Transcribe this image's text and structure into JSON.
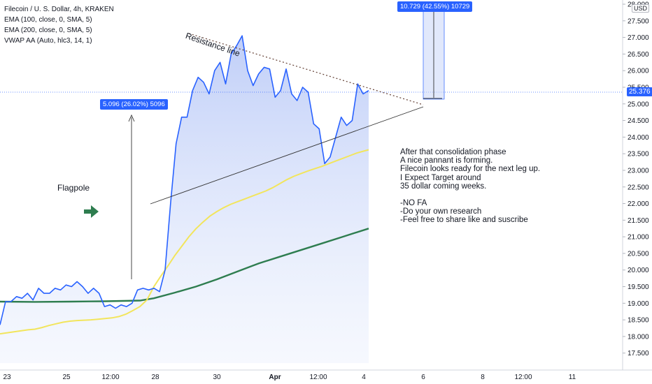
{
  "legend": {
    "title": "Filecoin / U. S. Dollar, 4h, KRAKEN",
    "ema100": "EMA (100, close, 0, SMA, 5)",
    "ema200": "EMA (200, close, 0, SMA, 5)",
    "vwap": "VWAP AA (Auto, hlc3, 14, 1)"
  },
  "currency": "USD",
  "current_price": "25.376",
  "annotations": {
    "flagpole": "Flagpole",
    "resistance": "Resistance line",
    "measure_flagpole": "5.096 (26.02%) 5096",
    "measure_target": "10.729 (42.55%) 10729"
  },
  "note_lines": [
    "After that consolidation phase",
    "A nice pannant is forming.",
    "Filecoin looks ready for the next leg up.",
    "I Expect Target around",
    "35 dollar coming weeks.",
    "",
    "-NO FA",
    "-Do your own research",
    "-Feel free to share like and suscribe"
  ],
  "colors": {
    "price": "#2962ff",
    "ema100": "#f2e55c",
    "ema200": "#2e7d4f",
    "area_fill": "#c9d6f8",
    "accent": "#2962ff",
    "green_arrow": "#2e7d4f"
  },
  "chart_data": {
    "type": "line",
    "title": "Filecoin / U. S. Dollar, 4h, KRAKEN",
    "ylim": [
      17.2,
      28.0
    ],
    "y_ticks": [
      "17.500",
      "18.000",
      "18.500",
      "19.000",
      "19.500",
      "20.000",
      "20.500",
      "21.000",
      "21.500",
      "22.000",
      "22.500",
      "23.000",
      "23.500",
      "24.000",
      "24.500",
      "25.000",
      "25.500",
      "26.000",
      "26.500",
      "27.000",
      "27.500",
      "28.000"
    ],
    "x_ticks": [
      "23",
      "25",
      "12:00",
      "28",
      "30",
      "Apr",
      "12:00",
      "4",
      "6",
      "8",
      "12:00",
      "11"
    ],
    "series": [
      {
        "key": "price",
        "x": [
          0,
          1.2,
          2.4,
          3.6,
          4.8,
          6,
          7.2,
          8.4,
          9.6,
          10.8,
          12,
          13.2,
          14.4,
          15.6,
          16.8,
          18,
          19.2,
          20.4,
          21.6,
          22.8,
          24,
          25.2,
          26.4,
          27.6,
          28.8,
          30,
          31.2,
          32.4,
          33.6,
          34.8,
          36,
          37.2,
          38.4,
          39.6,
          40.8,
          42,
          43.2,
          44.4,
          45.6,
          46.8,
          48,
          49.2,
          50.4,
          51.6,
          52.8,
          54,
          55.2,
          56.4,
          57.6,
          58.8,
          60,
          61.2,
          62.4,
          63.6,
          64.8,
          66,
          67.2,
          68.4,
          69.6,
          70.8,
          72,
          73.2,
          74.4,
          75.6,
          76.8,
          78,
          79.2,
          80.4
        ],
        "values": [
          18.35,
          19.05,
          19.05,
          19.2,
          19.15,
          19.3,
          19.1,
          19.45,
          19.3,
          19.3,
          19.45,
          19.4,
          19.55,
          19.5,
          19.65,
          19.5,
          19.3,
          19.45,
          19.3,
          18.9,
          18.95,
          18.85,
          18.95,
          18.9,
          19.0,
          19.4,
          19.45,
          19.4,
          19.45,
          19.35,
          20.0,
          22.0,
          23.8,
          24.6,
          24.6,
          25.4,
          25.8,
          25.65,
          25.3,
          26.0,
          26.25,
          25.6,
          26.5,
          26.75,
          27.05,
          26.0,
          25.55,
          25.9,
          26.1,
          26.05,
          25.2,
          25.4,
          26.05,
          25.3,
          25.1,
          25.5,
          25.35,
          24.4,
          24.25,
          23.2,
          23.4,
          24.0,
          24.6,
          24.35,
          24.5,
          25.6,
          25.3,
          25.4
        ]
      },
      {
        "key": "ema100",
        "x": [
          0,
          20,
          40,
          50,
          60,
          70,
          80,
          90,
          100,
          110,
          120,
          130,
          140,
          150,
          160,
          170,
          180,
          190,
          200,
          210,
          220,
          230,
          240,
          250,
          260,
          270,
          280,
          290,
          300,
          310,
          320,
          330,
          340,
          350,
          360,
          370,
          380,
          390,
          400,
          410,
          420,
          430,
          440,
          450,
          460,
          470,
          480,
          490,
          500,
          510,
          520,
          527
        ],
        "values": [
          18.08,
          18.14,
          18.2,
          18.22,
          18.27,
          18.33,
          18.38,
          18.43,
          18.46,
          18.48,
          18.49,
          18.5,
          18.52,
          18.54,
          18.56,
          18.6,
          18.67,
          18.78,
          18.9,
          19.1,
          19.5,
          19.82,
          20.12,
          20.44,
          20.72,
          21.0,
          21.24,
          21.44,
          21.62,
          21.76,
          21.88,
          21.98,
          22.06,
          22.14,
          22.22,
          22.3,
          22.38,
          22.48,
          22.6,
          22.72,
          22.82,
          22.9,
          22.98,
          23.05,
          23.12,
          23.2,
          23.28,
          23.36,
          23.44,
          23.52,
          23.58,
          23.62
        ]
      },
      {
        "key": "ema200",
        "x": [
          0,
          50,
          100,
          150,
          200,
          220,
          250,
          280,
          310,
          340,
          370,
          400,
          430,
          460,
          490,
          527
        ],
        "values": [
          19.05,
          19.04,
          19.05,
          19.06,
          19.08,
          19.15,
          19.32,
          19.5,
          19.72,
          19.96,
          20.2,
          20.4,
          20.6,
          20.8,
          21.0,
          21.25
        ]
      }
    ]
  }
}
